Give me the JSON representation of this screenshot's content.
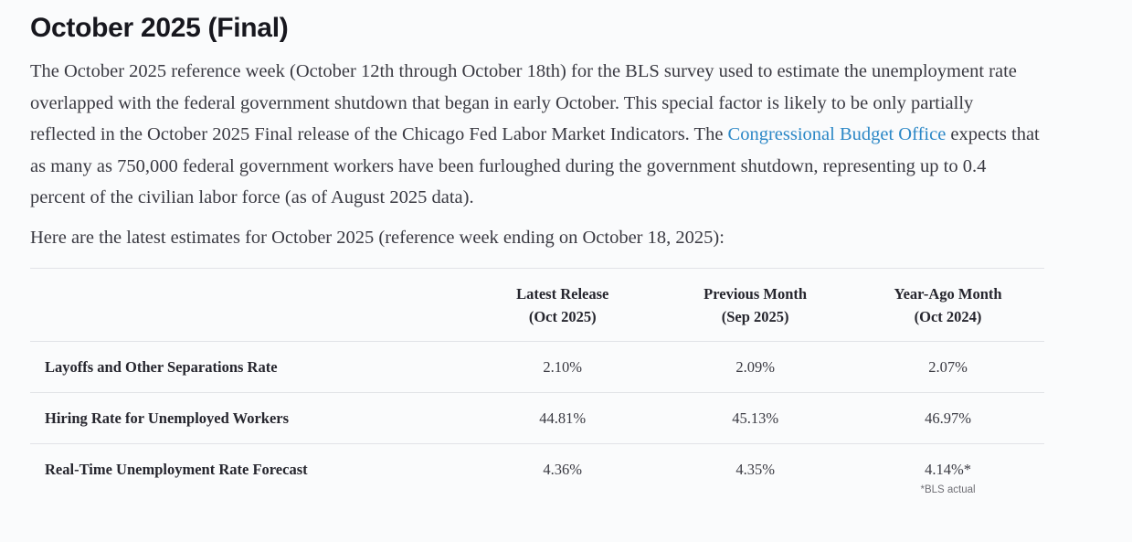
{
  "page": {
    "title": "October 2025 (Final)"
  },
  "intro": {
    "before_link": "The October 2025 reference week (October 12th through October 18th) for the BLS survey used to estimate the unemployment rate overlapped with the federal government shutdown that began in early October. This special factor is likely to be only partially reflected in the October 2025 Final release of the Chicago Fed Labor Market Indicators. The ",
    "link_text": "Congressional Budget Office",
    "after_link": " expects that as many as 750,000 federal government workers have been furloughed during the government shutdown, representing up to 0.4 percent of the civilian labor force (as of August 2025 data)."
  },
  "estimates_intro": "Here are the latest estimates for October 2025 (reference week ending on October 18, 2025):",
  "table": {
    "columns": [
      {
        "line1": "Latest Release",
        "line2": "(Oct 2025)"
      },
      {
        "line1": "Previous Month",
        "line2": "(Sep 2025)"
      },
      {
        "line1": "Year-Ago Month",
        "line2": "(Oct 2024)"
      }
    ],
    "rows": [
      {
        "label": "Layoffs and Other Separations Rate",
        "values": [
          "2.10%",
          "2.09%",
          "2.07%"
        ]
      },
      {
        "label": "Hiring Rate for Unemployed Workers",
        "values": [
          "44.81%",
          "45.13%",
          "46.97%"
        ]
      },
      {
        "label": "Real-Time Unemployment Rate Forecast",
        "values": [
          "4.36%",
          "4.35%",
          "4.14%*"
        ],
        "footnote": "*BLS actual"
      }
    ]
  },
  "colors": {
    "background": "#fafbfc",
    "heading_text": "#17171e",
    "body_text": "#3a3a42",
    "link": "#2b87c6",
    "table_rule": "#e1e3e7",
    "footnote_text": "#6f6f75"
  }
}
